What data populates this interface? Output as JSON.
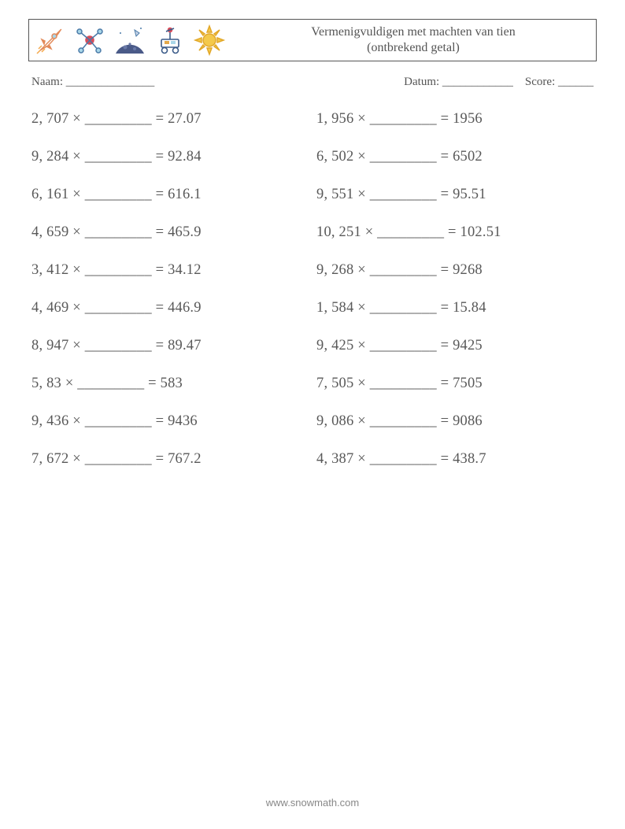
{
  "header": {
    "title_line1": "Vermenigvuldigen met machten van tien",
    "title_line2": "(ontbrekend getal)"
  },
  "info": {
    "name_label": "Naam: _______________",
    "date_label": "Datum: ____________",
    "score_label": "Score: ______"
  },
  "icons": {
    "rocket_stroke": "#e28a5a",
    "rocket_fill": "#a9d6e8",
    "satellite_stroke": "#4a7aa8",
    "satellite_fill": "#d84c5a",
    "moon_fill": "#4a5a88",
    "moon_glow": "#c8d4e8",
    "rover_stroke": "#3a5a88",
    "rover_accent": "#e2a84a",
    "sun_fill": "#f4c94a",
    "sun_stroke": "#e2a82a"
  },
  "problems": {
    "blank": "_________",
    "left": [
      {
        "a": "2, 707",
        "r": "27.07"
      },
      {
        "a": "9, 284",
        "r": "92.84"
      },
      {
        "a": "6, 161",
        "r": "616.1"
      },
      {
        "a": "4, 659",
        "r": "465.9"
      },
      {
        "a": "3, 412",
        "r": "34.12"
      },
      {
        "a": "4, 469",
        "r": "446.9"
      },
      {
        "a": "8, 947",
        "r": "89.47"
      },
      {
        "a": "5, 83",
        "r": "583"
      },
      {
        "a": "9, 436",
        "r": "9436"
      },
      {
        "a": "7, 672",
        "r": "767.2"
      }
    ],
    "right": [
      {
        "a": "1, 956",
        "r": "1956"
      },
      {
        "a": "6, 502",
        "r": "6502"
      },
      {
        "a": "9, 551",
        "r": "95.51"
      },
      {
        "a": "10, 251",
        "r": "102.51"
      },
      {
        "a": "9, 268",
        "r": "9268"
      },
      {
        "a": "1, 584",
        "r": "15.84"
      },
      {
        "a": "9, 425",
        "r": "9425"
      },
      {
        "a": "7, 505",
        "r": "7505"
      },
      {
        "a": "9, 086",
        "r": "9086"
      },
      {
        "a": "4, 387",
        "r": "438.7"
      }
    ]
  },
  "footer": {
    "text": "www.snowmath.com"
  },
  "style": {
    "page_bg": "#ffffff",
    "text_color": "#595959",
    "border_color": "#555555",
    "problem_font_size": 18.5,
    "title_font_size": 16,
    "info_font_size": 15
  }
}
